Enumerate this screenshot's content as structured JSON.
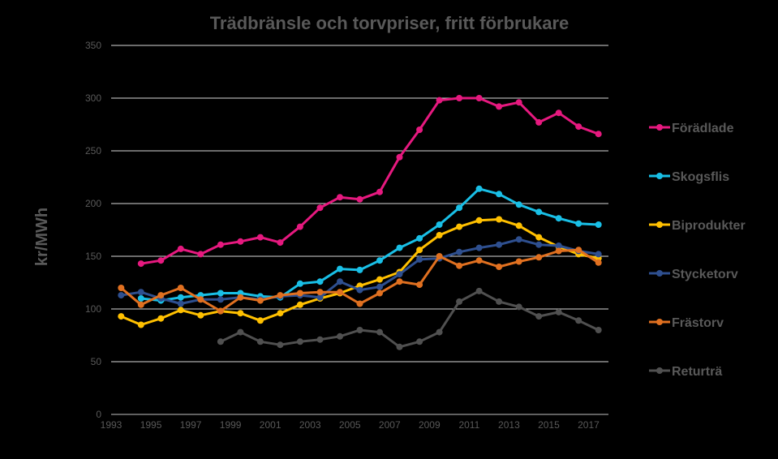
{
  "chart_data": {
    "type": "line",
    "title": "Trädbränsle och torvpriser, fritt förbrukare",
    "ylabel": "kr/MWh",
    "xlabel": "",
    "xlim": [
      1993,
      2018
    ],
    "ylim": [
      0,
      350
    ],
    "x_ticks": [
      1993,
      1995,
      1997,
      1999,
      2001,
      2003,
      2005,
      2007,
      2009,
      2011,
      2013,
      2015,
      2017
    ],
    "y_ticks": [
      0,
      50,
      100,
      150,
      200,
      250,
      300,
      350
    ],
    "grid": "horizontal",
    "legend_position": "right",
    "x": [
      1993.5,
      1994.5,
      1995.5,
      1996.5,
      1997.5,
      1998.5,
      1999.5,
      2000.5,
      2001.5,
      2002.5,
      2003.5,
      2004.5,
      2005.5,
      2006.5,
      2007.5,
      2008.5,
      2009.5,
      2010.5,
      2011.5,
      2012.5,
      2013.5,
      2014.5,
      2015.5,
      2016.5,
      2017.5
    ],
    "series": [
      {
        "name": "Förädlade",
        "color": "#E6197F",
        "values": [
          null,
          143,
          146,
          157,
          152,
          161,
          164,
          168,
          163,
          178,
          196,
          206,
          204,
          211,
          244,
          270,
          298,
          300,
          300,
          292,
          296,
          277,
          286,
          273,
          266
        ]
      },
      {
        "name": "Skogsflis",
        "color": "#19BFE6",
        "values": [
          null,
          110,
          108,
          111,
          113,
          115,
          115,
          112,
          111,
          124,
          126,
          138,
          137,
          146,
          158,
          167,
          180,
          196,
          214,
          209,
          199,
          192,
          186,
          181,
          180
        ]
      },
      {
        "name": "Biprodukter",
        "color": "#FFC000",
        "values": [
          93,
          85,
          91,
          99,
          94,
          98,
          96,
          89,
          96,
          104,
          110,
          115,
          122,
          128,
          135,
          156,
          170,
          178,
          184,
          185,
          179,
          168,
          159,
          152,
          148
        ]
      },
      {
        "name": "Stycketorv",
        "color": "#2E4F8F",
        "values": [
          113,
          116,
          110,
          105,
          109,
          109,
          111,
          109,
          112,
          113,
          111,
          126,
          118,
          121,
          133,
          147,
          148,
          154,
          158,
          161,
          166,
          161,
          160,
          155,
          152
        ]
      },
      {
        "name": "Frästorv",
        "color": "#E07020",
        "values": [
          120,
          104,
          113,
          120,
          109,
          98,
          111,
          108,
          113,
          115,
          116,
          116,
          105,
          115,
          126,
          123,
          150,
          141,
          146,
          140,
          145,
          149,
          155,
          156,
          144
        ]
      },
      {
        "name": "Returträ",
        "color": "#505050",
        "values": [
          null,
          null,
          null,
          null,
          null,
          69,
          78,
          69,
          66,
          69,
          71,
          74,
          80,
          78,
          64,
          69,
          78,
          107,
          117,
          107,
          102,
          93,
          97,
          89,
          80
        ]
      }
    ]
  }
}
